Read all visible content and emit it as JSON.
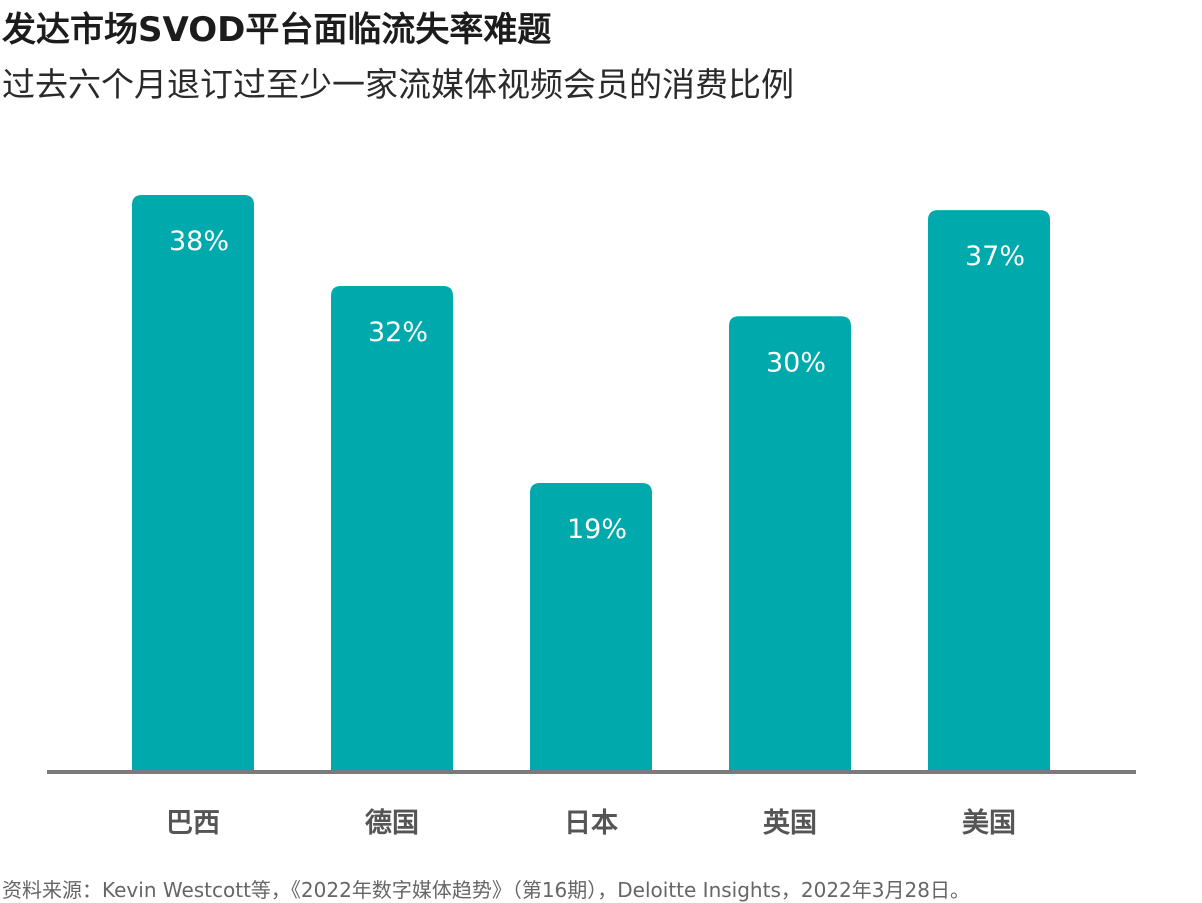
{
  "header": {
    "title": "发达市场SVOD平台面临流失率难题",
    "subtitle": "过去六个月退订过至少一家流媒体视频会员的消费比例"
  },
  "footer": {
    "source": "资料来源：Kevin Westcott等，《2022年数字媒体趋势》（第16期），Deloitte Insights，2022年3月28日。"
  },
  "chart_data": {
    "type": "bar",
    "categories": [
      "巴西",
      "德国",
      "日本",
      "英国",
      "美国"
    ],
    "values": [
      38,
      32,
      19,
      30,
      37
    ],
    "data_labels": [
      "38%",
      "32%",
      "19%",
      "30%",
      "37%"
    ],
    "title": "发达市场SVOD平台面临流失率难题",
    "subtitle": "过去六个月退订过至少一家流媒体视频会员的消费比例",
    "xlabel": "",
    "ylabel": "",
    "ylim": [
      0,
      38
    ],
    "grid": false,
    "colors": {
      "bar": "#00A9AC",
      "axis": "#7a7a7a",
      "category_text": "#555555",
      "label_text": "#ffffff"
    }
  }
}
